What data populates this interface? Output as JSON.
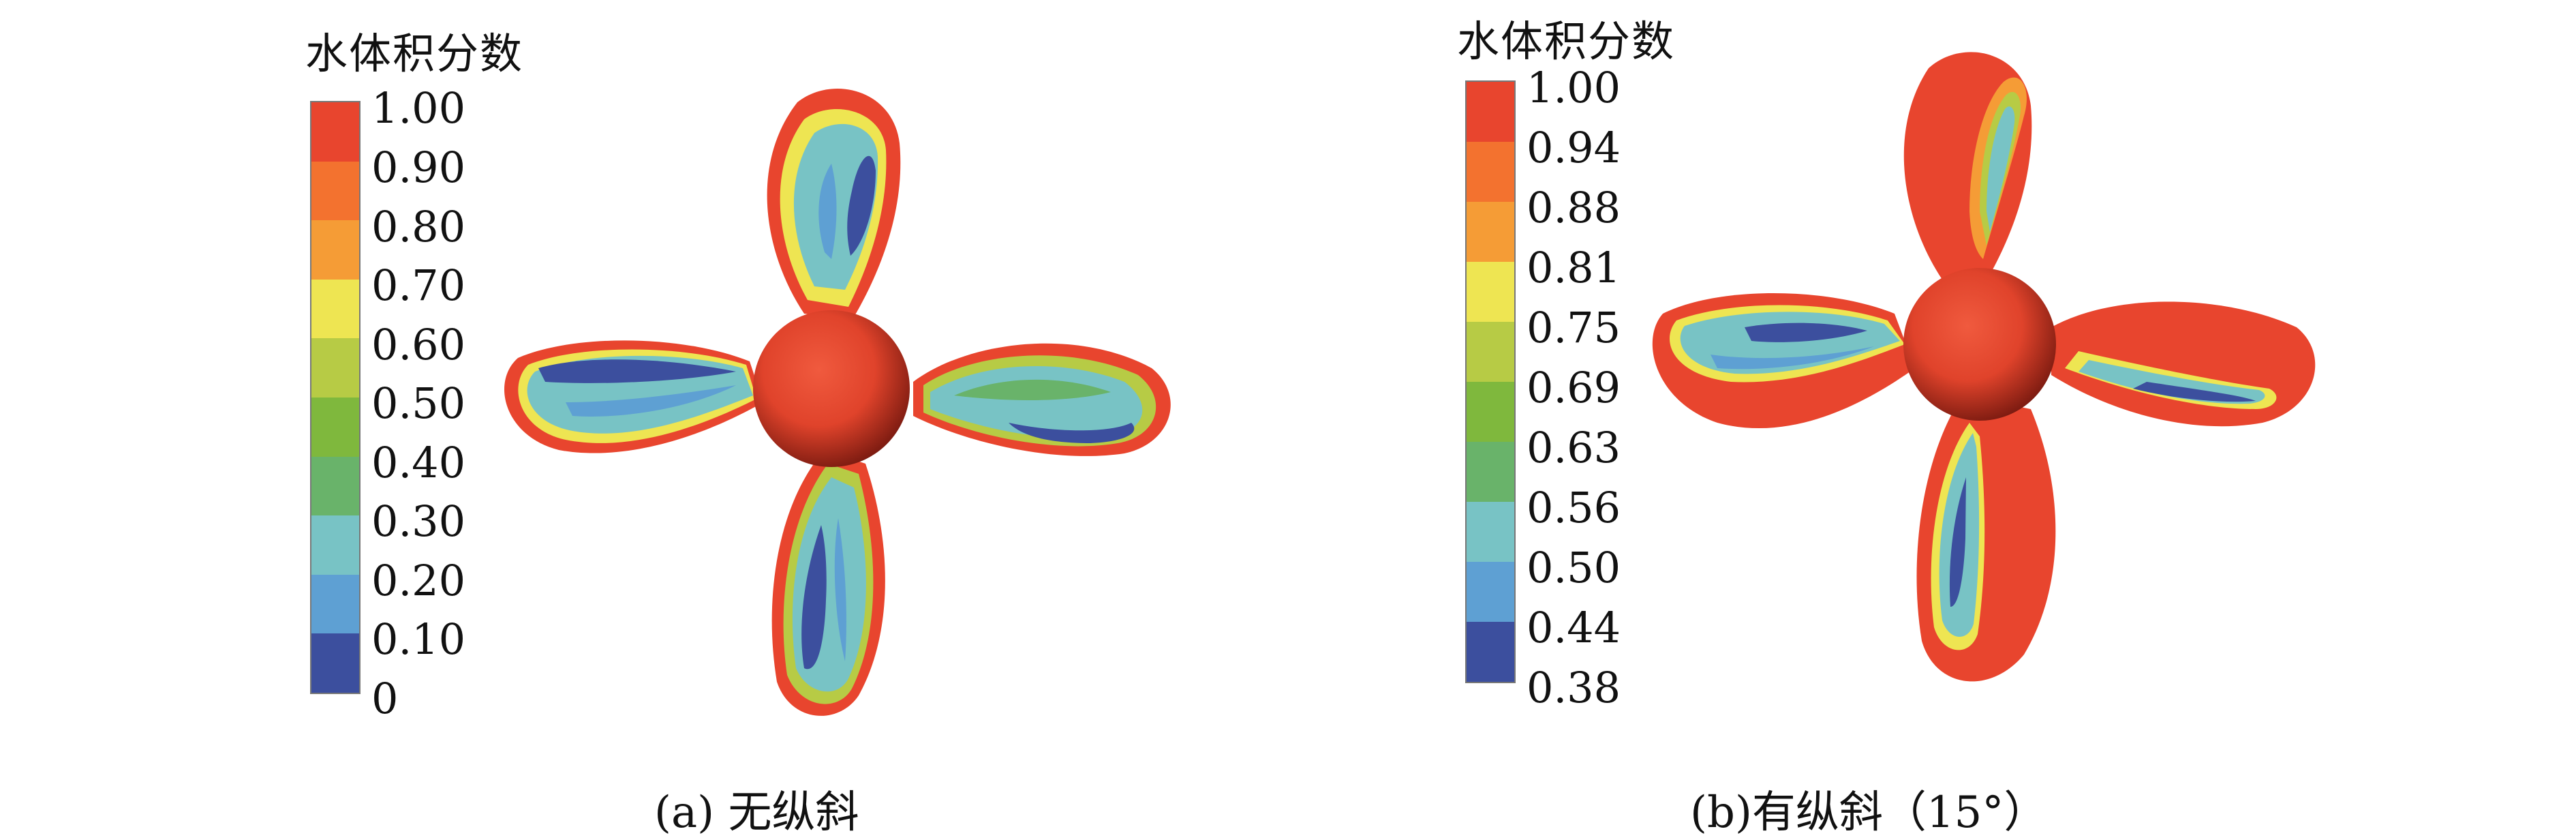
{
  "panels": [
    {
      "legend_title": "水体积分数",
      "ticks": [
        "1.00",
        "0.90",
        "0.80",
        "0.70",
        "0.60",
        "0.50",
        "0.40",
        "0.30",
        "0.20",
        "0.10",
        "0"
      ],
      "colors": [
        "#e8452e",
        "#f3722f",
        "#f59c36",
        "#eee552",
        "#b7cb45",
        "#7fb83d",
        "#69b36a",
        "#69b996",
        "#78c3c5",
        "#5ea0d3",
        "#3c4f9e"
      ],
      "caption": "(a)  无纵斜"
    },
    {
      "legend_title": "水体积分数",
      "ticks": [
        "1.00",
        "0.94",
        "0.88",
        "0.81",
        "0.75",
        "0.69",
        "0.63",
        "0.56",
        "0.50",
        "0.44",
        "0.38"
      ],
      "colors": [
        "#e8452e",
        "#f3722f",
        "#f59c36",
        "#eee552",
        "#b7cb45",
        "#7fb83d",
        "#69b36a",
        "#69b996",
        "#78c3c5",
        "#5ea0d3",
        "#3c4f9e"
      ],
      "caption": "(b)有纵斜（15°）"
    }
  ]
}
